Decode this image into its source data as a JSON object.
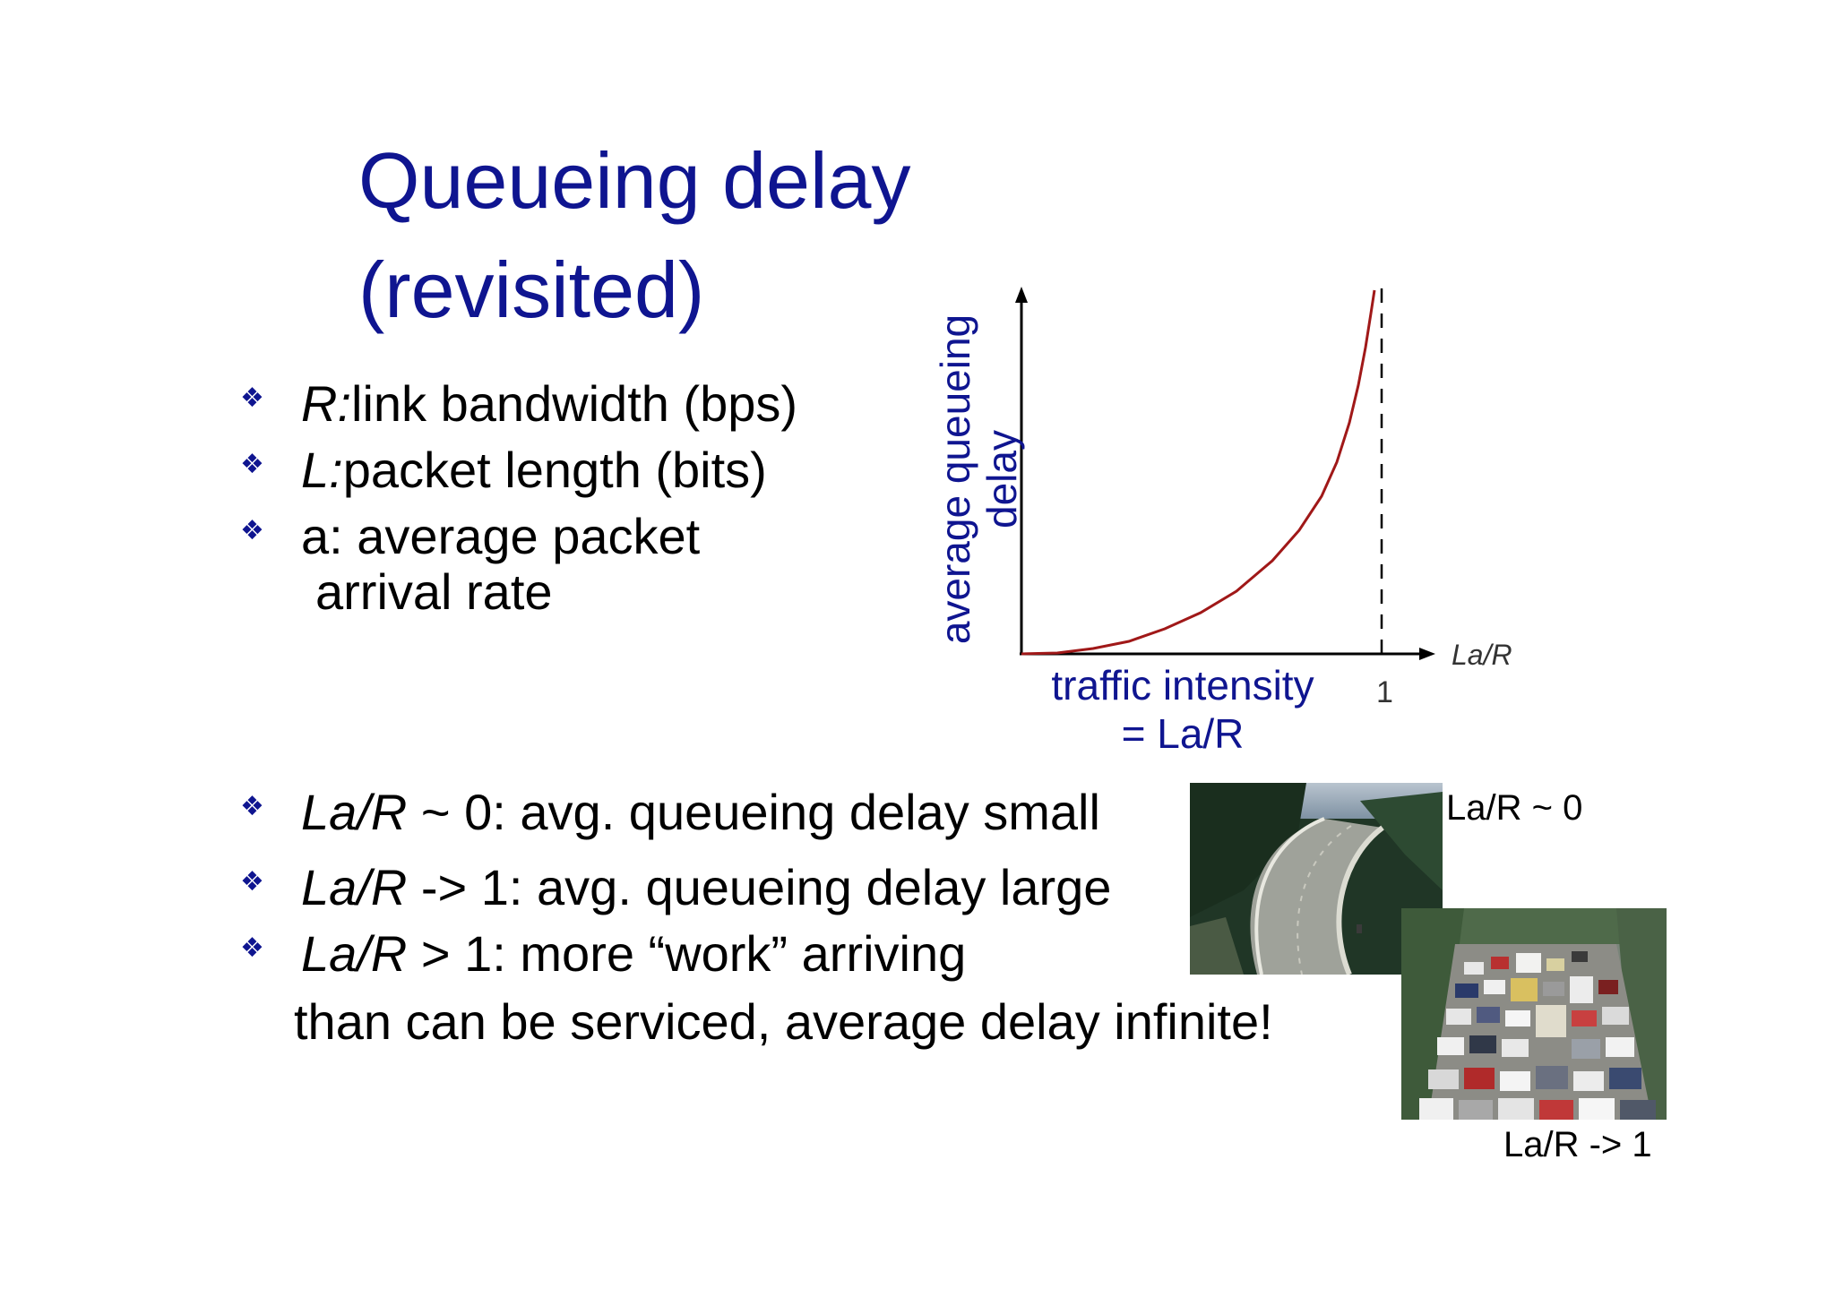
{
  "title": {
    "line1": "Queueing delay",
    "line2": "(revisited)"
  },
  "definitions": [
    {
      "symbol": "R:",
      "text": "link bandwidth (bps)"
    },
    {
      "symbol": "L:",
      "text": "packet length (bits)"
    },
    {
      "symbol": "a",
      "text": ": average packet",
      "text2": "arrival rate"
    }
  ],
  "chart": {
    "ylabel_line1": "average  queueing",
    "ylabel_line2": "delay",
    "xlabel_line1": "traffic intensity",
    "xlabel_line2": "= La/R",
    "x_axis_name": "La/R",
    "tick_one": "1"
  },
  "cases": [
    {
      "expr": "La/R",
      "rel": " ~ ",
      "num": "0",
      "text": ": avg. queueing delay small"
    },
    {
      "expr": "La/R",
      "rel": " -> ",
      "num": "1",
      "text": ": avg. queueing delay large"
    },
    {
      "expr": "La/R",
      "rel": " > ",
      "num": "1",
      "text": ": more “work” arriving",
      "text2": "than can be serviced, average delay infinite!"
    }
  ],
  "photos": {
    "caption_top": "La/R ~ 0",
    "caption_bottom": "La/R -> 1"
  },
  "colors": {
    "title": "#0f1590",
    "curve": "#a01818",
    "accent": "#0f1590"
  }
}
